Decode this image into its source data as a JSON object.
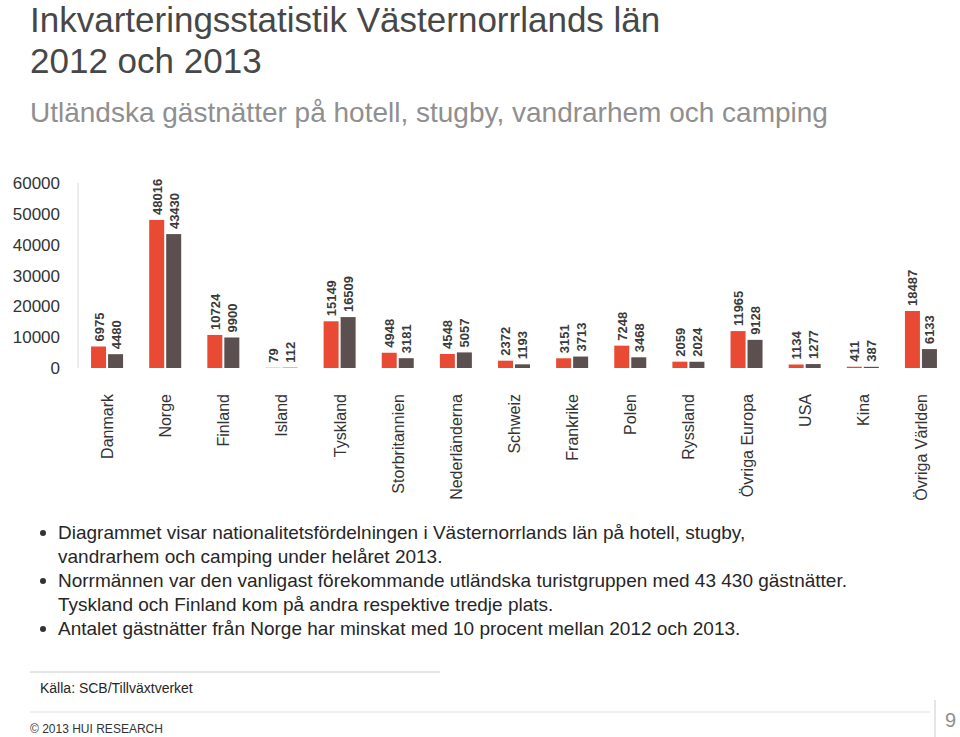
{
  "chart_data": {
    "type": "bar",
    "title": [
      "Inkvarteringsstatistik Västernorrlands län",
      "2012 och 2013"
    ],
    "subtitle": "Utländska gästnätter på hotell, stugby, vandrarhem och camping",
    "categories": [
      "Danmark",
      "Norge",
      "Finland",
      "Island",
      "Tyskland",
      "Storbritannien",
      "Nederländerna",
      "Schweiz",
      "Frankrike",
      "Polen",
      "Ryssland",
      "Övriga Europa",
      "USA",
      "Kina",
      "Övriga Världen"
    ],
    "series": [
      {
        "color": "#e84a34",
        "values": [
          6975,
          48016,
          10724,
          79,
          15149,
          4948,
          4548,
          2372,
          3151,
          7248,
          2059,
          11965,
          1134,
          411,
          18487
        ]
      },
      {
        "color": "#5b4f4f",
        "values": [
          4480,
          43430,
          9900,
          112,
          16509,
          3181,
          5057,
          1193,
          3713,
          3468,
          2024,
          9128,
          1277,
          387,
          6133
        ]
      }
    ],
    "ylim": [
      0,
      60000
    ],
    "yticks": [
      0,
      10000,
      20000,
      30000,
      40000,
      50000,
      60000
    ],
    "grid": false,
    "data_labels": true,
    "annotations": [
      [
        "Diagrammet visar nationalitetsfördelningen i Västernorrlands län på hotell, stugby,",
        "vandrarhem och camping under helåret 2013."
      ],
      [
        "Norrmännen var den vanligast förekommande utländska turistgruppen med 43 430 gästnätter.",
        "Tyskland och Finland kom på andra respektive tredje plats."
      ],
      [
        "Antalet gästnätter från Norge har minskat med 10 procent mellan 2012 och 2013."
      ]
    ],
    "source": "Källa: SCB/Tillväxtverket",
    "footer": "© 2013 HUI RESEARCH",
    "page": "9"
  }
}
